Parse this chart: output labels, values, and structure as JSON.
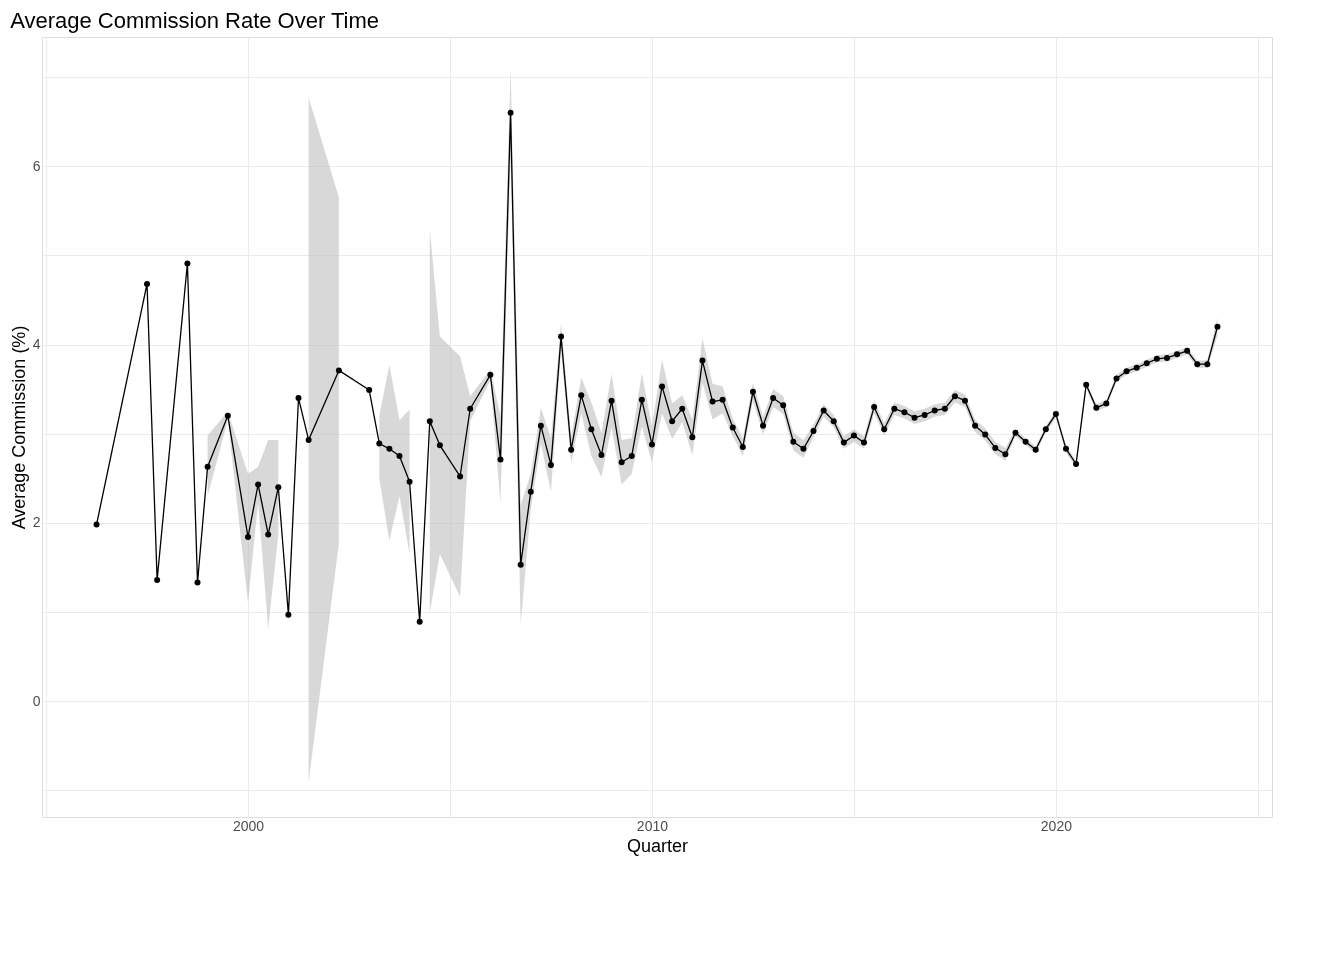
{
  "chart_data": {
    "type": "line",
    "title": "Average Commission Rate Over Time",
    "xlabel": "Quarter",
    "ylabel": "Average Commission (%)",
    "xlim": [
      1994.9,
      2025.35
    ],
    "ylim": [
      -1.3,
      7.45
    ],
    "xticks": [
      {
        "value": 1995,
        "label": null
      },
      2000,
      {
        "value": 2005,
        "label": null
      },
      2010,
      {
        "value": 2015,
        "label": null
      },
      2020,
      {
        "value": 2025,
        "label": null
      }
    ],
    "yticks": [
      {
        "value": -1,
        "label": null
      },
      0,
      {
        "value": 1,
        "label": null
      },
      2,
      {
        "value": 3,
        "label": null
      },
      4,
      {
        "value": 5,
        "label": null
      },
      6,
      {
        "value": 7,
        "label": null
      }
    ],
    "grid": true,
    "marker": "circle",
    "line_style": "solid",
    "series": [
      {
        "color": "#000000",
        "x": [
          1996.25,
          1997.5,
          1997.75,
          1998.5,
          1998.75,
          1999.0,
          1999.5,
          2000.0,
          2000.25,
          2000.5,
          2000.75,
          2001.0,
          2001.25,
          2001.5,
          2002.25,
          2003.0,
          2003.25,
          2003.5,
          2003.75,
          2004.0,
          2004.25,
          2004.5,
          2004.75,
          2005.25,
          2005.5,
          2006.0,
          2006.25,
          2006.5,
          2006.75,
          2007.0,
          2007.25,
          2007.5,
          2007.75,
          2008.0,
          2008.25,
          2008.5,
          2008.75,
          2009.0,
          2009.25,
          2009.5,
          2009.75,
          2010.0,
          2010.25,
          2010.5,
          2010.75,
          2011.0,
          2011.25,
          2011.5,
          2011.75,
          2012.0,
          2012.25,
          2012.5,
          2012.75,
          2013.0,
          2013.25,
          2013.5,
          2013.75,
          2014.0,
          2014.25,
          2014.5,
          2014.75,
          2015.0,
          2015.25,
          2015.5,
          2015.75,
          2016.0,
          2016.25,
          2016.5,
          2016.75,
          2017.0,
          2017.25,
          2017.5,
          2017.75,
          2018.0,
          2018.25,
          2018.5,
          2018.75,
          2019.0,
          2019.25,
          2019.5,
          2019.75,
          2020.0,
          2020.25,
          2020.5,
          2020.75,
          2021.0,
          2021.25,
          2021.5,
          2021.75,
          2022.0,
          2022.25,
          2022.5,
          2022.75,
          2023.0,
          2023.25,
          2023.5,
          2023.75,
          2024.0
        ],
        "values": [
          1.98,
          4.68,
          1.36,
          4.91,
          1.33,
          2.63,
          3.2,
          1.84,
          2.43,
          1.87,
          2.4,
          0.97,
          3.4,
          2.93,
          3.71,
          3.49,
          2.89,
          2.83,
          2.75,
          2.46,
          0.89,
          3.14,
          2.87,
          2.52,
          3.28,
          3.66,
          2.71,
          6.6,
          1.53,
          2.35,
          3.09,
          2.65,
          4.09,
          2.82,
          3.43,
          3.05,
          2.76,
          3.37,
          2.68,
          2.75,
          3.38,
          2.88,
          3.53,
          3.14,
          3.28,
          2.96,
          3.82,
          3.36,
          3.38,
          3.07,
          2.85,
          3.47,
          3.09,
          3.4,
          3.32,
          2.91,
          2.83,
          3.03,
          3.26,
          3.14,
          2.9,
          2.98,
          2.9,
          3.3,
          3.05,
          3.28,
          3.24,
          3.18,
          3.21,
          3.26,
          3.28,
          3.42,
          3.37,
          3.09,
          2.99,
          2.84,
          2.77,
          3.01,
          2.91,
          2.82,
          3.05,
          3.22,
          2.83,
          2.66,
          3.55,
          3.29,
          3.34,
          3.62,
          3.7,
          3.74,
          3.79,
          3.84,
          3.85,
          3.89,
          3.93,
          3.78,
          3.78,
          4.2
        ],
        "lower": [
          null,
          null,
          null,
          null,
          null,
          2.3,
          3.15,
          1.1,
          2.23,
          0.81,
          1.87,
          null,
          null,
          -0.91,
          1.77,
          null,
          2.5,
          1.8,
          2.3,
          1.65,
          null,
          0.99,
          1.65,
          1.17,
          3.14,
          3.6,
          2.22,
          6.11,
          0.86,
          2.15,
          2.89,
          2.35,
          3.94,
          2.67,
          3.23,
          2.75,
          2.51,
          3.07,
          2.43,
          2.55,
          3.08,
          2.68,
          3.23,
          2.94,
          3.13,
          2.76,
          3.57,
          3.16,
          3.23,
          2.97,
          2.75,
          3.37,
          2.99,
          3.3,
          3.22,
          2.81,
          2.73,
          2.96,
          3.19,
          3.07,
          2.83,
          2.91,
          2.83,
          3.23,
          2.98,
          3.21,
          3.17,
          3.11,
          3.14,
          3.19,
          3.21,
          3.35,
          3.3,
          3.02,
          2.92,
          2.77,
          2.7,
          2.97,
          2.87,
          2.78,
          3.01,
          3.18,
          2.79,
          2.62,
          3.51,
          3.25,
          3.3,
          3.58,
          3.66,
          3.7,
          3.75,
          3.8,
          3.81,
          3.85,
          3.89,
          3.74,
          3.74,
          4.1
        ],
        "upper": [
          null,
          null,
          null,
          null,
          null,
          2.98,
          3.25,
          2.55,
          2.63,
          2.93,
          2.93,
          null,
          null,
          6.77,
          5.65,
          null,
          3.2,
          3.77,
          3.15,
          3.27,
          null,
          5.29,
          4.09,
          3.87,
          3.42,
          3.72,
          3.2,
          7.09,
          2.2,
          2.55,
          3.29,
          2.95,
          4.24,
          2.97,
          3.63,
          3.35,
          3.01,
          3.67,
          2.93,
          2.95,
          3.68,
          3.08,
          3.83,
          3.34,
          3.43,
          3.16,
          4.07,
          3.56,
          3.53,
          3.17,
          2.95,
          3.57,
          3.19,
          3.5,
          3.42,
          3.01,
          2.93,
          3.1,
          3.33,
          3.21,
          2.97,
          3.05,
          2.97,
          3.37,
          3.12,
          3.35,
          3.31,
          3.25,
          3.28,
          3.33,
          3.35,
          3.49,
          3.44,
          3.16,
          3.06,
          2.91,
          2.84,
          3.05,
          2.95,
          2.86,
          3.09,
          3.26,
          2.87,
          2.7,
          3.59,
          3.33,
          3.38,
          3.66,
          3.74,
          3.78,
          3.83,
          3.88,
          3.89,
          3.93,
          3.97,
          3.82,
          3.82,
          4.3
        ]
      }
    ]
  }
}
